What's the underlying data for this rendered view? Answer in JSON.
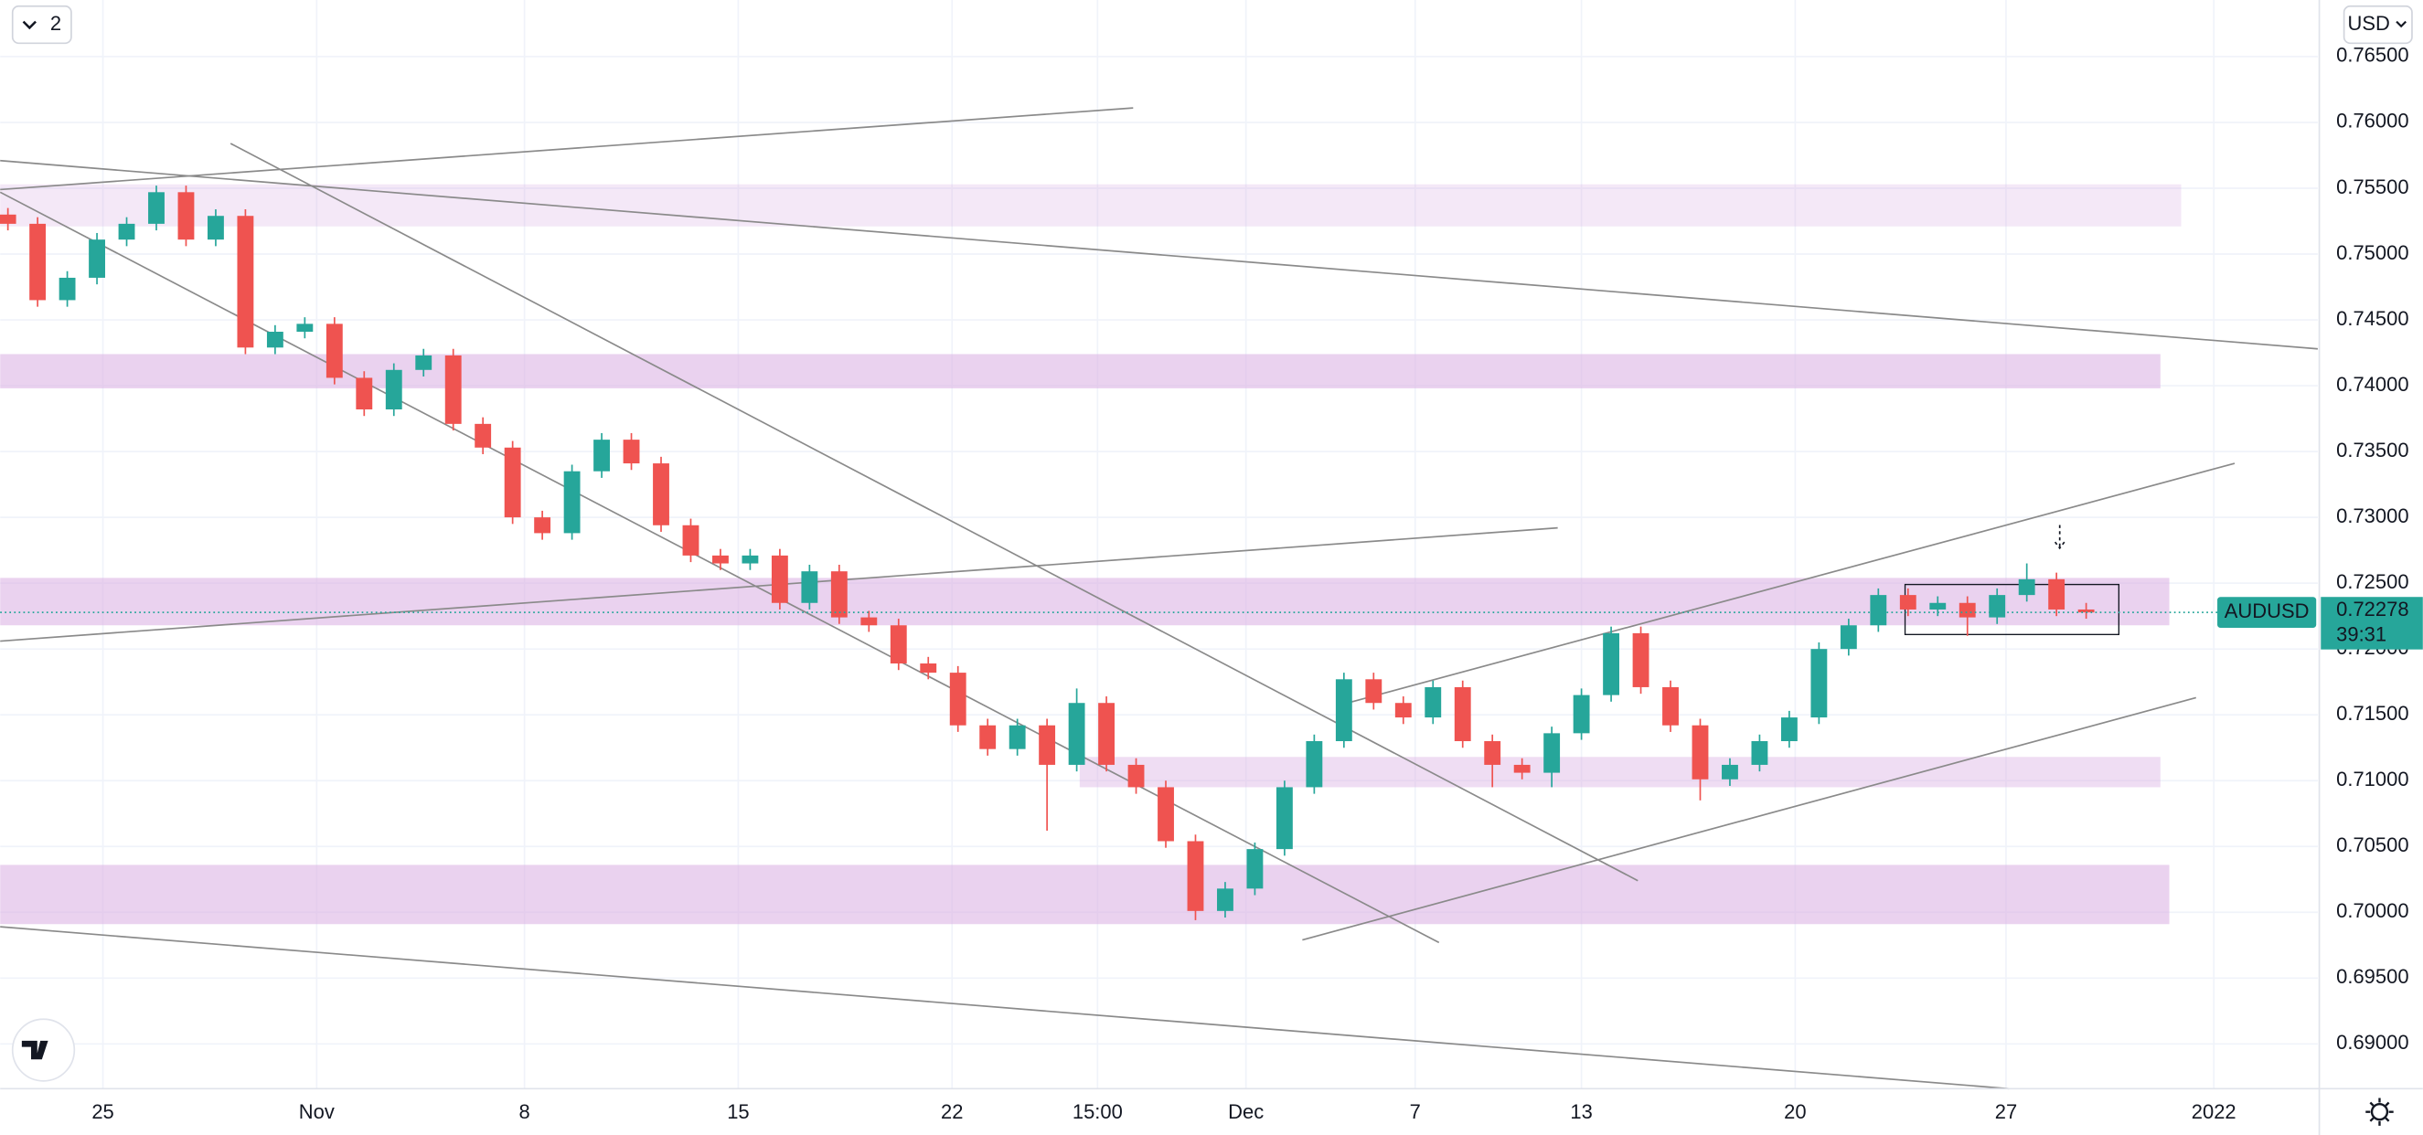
{
  "interval_button": "2",
  "currency": "USD",
  "chart_data": {
    "type": "candlestick",
    "symbol": "AUDUSD",
    "countdown": "39:31",
    "last_price": 0.72278,
    "colors": {
      "up": "#26a69a",
      "down": "#ef5350",
      "zone": "#dcb4e4",
      "line": "#8a8a8a"
    },
    "grid": true,
    "xlim": [
      -0.26,
      77.8
    ],
    "xticks": [
      {
        "value": 3.2,
        "label": "25"
      },
      {
        "value": 10.4,
        "label": "Nov"
      },
      {
        "value": 17.4,
        "label": "8"
      },
      {
        "value": 24.6,
        "label": "15"
      },
      {
        "value": 31.8,
        "label": "22"
      },
      {
        "value": 36.7,
        "label": "15:00"
      },
      {
        "value": 41.7,
        "label": "Dec"
      },
      {
        "value": 47.4,
        "label": "7"
      },
      {
        "value": 53.0,
        "label": "13"
      },
      {
        "value": 60.2,
        "label": "20"
      },
      {
        "value": 67.3,
        "label": "27"
      },
      {
        "value": 74.3,
        "label": "2022"
      }
    ],
    "ylim": [
      0.6866,
      0.7693
    ],
    "yticks": [
      {
        "value": 0.765,
        "label": "0.76500"
      },
      {
        "value": 0.76,
        "label": "0.76000"
      },
      {
        "value": 0.755,
        "label": "0.75500"
      },
      {
        "value": 0.75,
        "label": "0.75000"
      },
      {
        "value": 0.745,
        "label": "0.74500"
      },
      {
        "value": 0.74,
        "label": "0.74000"
      },
      {
        "value": 0.735,
        "label": "0.73500"
      },
      {
        "value": 0.73,
        "label": "0.73000"
      },
      {
        "value": 0.725,
        "label": "0.72500"
      },
      {
        "value": 0.72,
        "label": "0.72000"
      },
      {
        "value": 0.715,
        "label": "0.71500"
      },
      {
        "value": 0.71,
        "label": "0.71000"
      },
      {
        "value": 0.705,
        "label": "0.70500"
      },
      {
        "value": 0.7,
        "label": "0.70000"
      },
      {
        "value": 0.695,
        "label": "0.69500"
      },
      {
        "value": 0.69,
        "label": "0.69000"
      }
    ],
    "open": [
      0.753,
      0.7523,
      0.7465,
      0.7482,
      0.7511,
      0.7523,
      0.7547,
      0.7511,
      0.7529,
      0.7429,
      0.7441,
      0.7447,
      0.7406,
      0.7382,
      0.7412,
      0.7423,
      0.7371,
      0.7353,
      0.73,
      0.7288,
      0.7335,
      0.7359,
      0.7341,
      0.7294,
      0.7271,
      0.7265,
      0.7271,
      0.7235,
      0.7259,
      0.7224,
      0.7218,
      0.7189,
      0.7182,
      0.7142,
      0.7124,
      0.7142,
      0.7112,
      0.7159,
      0.7112,
      0.7095,
      0.7054,
      0.7001,
      0.7018,
      0.7048,
      0.7095,
      0.713,
      0.7177,
      0.7159,
      0.7148,
      0.7171,
      0.713,
      0.7112,
      0.7106,
      0.7136,
      0.7165,
      0.7212,
      0.7171,
      0.7142,
      0.7101,
      0.7112,
      0.713,
      0.7148,
      0.72,
      0.7218,
      0.7241,
      0.723,
      0.7235,
      0.7224,
      0.7241,
      0.7253,
      0.723
    ],
    "high": [
      0.7535,
      0.7528,
      0.7487,
      0.7516,
      0.7528,
      0.7552,
      0.7552,
      0.7534,
      0.7534,
      0.7446,
      0.7452,
      0.7452,
      0.7411,
      0.7417,
      0.7428,
      0.7428,
      0.7376,
      0.7358,
      0.7305,
      0.734,
      0.7364,
      0.7364,
      0.7346,
      0.7299,
      0.7276,
      0.7276,
      0.7276,
      0.7264,
      0.7264,
      0.7229,
      0.7223,
      0.7194,
      0.7187,
      0.7147,
      0.7147,
      0.7147,
      0.717,
      0.7164,
      0.7117,
      0.71,
      0.7059,
      0.7023,
      0.7053,
      0.71,
      0.7135,
      0.7182,
      0.7182,
      0.7164,
      0.7176,
      0.7176,
      0.7135,
      0.7117,
      0.7141,
      0.717,
      0.7217,
      0.7217,
      0.7176,
      0.7147,
      0.7117,
      0.7135,
      0.7153,
      0.7205,
      0.7223,
      0.7246,
      0.7246,
      0.724,
      0.724,
      0.7246,
      0.7265,
      0.7258,
      0.7235
    ],
    "low": [
      0.7518,
      0.746,
      0.746,
      0.7477,
      0.7506,
      0.7518,
      0.7506,
      0.7506,
      0.7424,
      0.7424,
      0.7436,
      0.7401,
      0.7377,
      0.7377,
      0.7407,
      0.7366,
      0.7348,
      0.7295,
      0.7283,
      0.7283,
      0.733,
      0.7336,
      0.7289,
      0.7266,
      0.726,
      0.726,
      0.723,
      0.723,
      0.7219,
      0.7213,
      0.7184,
      0.7177,
      0.7137,
      0.7119,
      0.7119,
      0.7062,
      0.7107,
      0.7107,
      0.709,
      0.7049,
      0.6994,
      0.6996,
      0.7013,
      0.7043,
      0.709,
      0.7125,
      0.7154,
      0.7143,
      0.7143,
      0.7125,
      0.7095,
      0.7101,
      0.7095,
      0.7131,
      0.716,
      0.7166,
      0.7137,
      0.7085,
      0.7096,
      0.7107,
      0.7125,
      0.7143,
      0.7195,
      0.7213,
      0.7225,
      0.7225,
      0.721,
      0.7219,
      0.7236,
      0.7225,
      0.7223
    ],
    "close": [
      0.7523,
      0.7465,
      0.7482,
      0.7511,
      0.7523,
      0.7547,
      0.7511,
      0.7529,
      0.7429,
      0.7441,
      0.7447,
      0.7406,
      0.7382,
      0.7412,
      0.7423,
      0.7371,
      0.7353,
      0.73,
      0.7288,
      0.7335,
      0.7359,
      0.7341,
      0.7294,
      0.7271,
      0.7265,
      0.7271,
      0.7235,
      0.7259,
      0.7224,
      0.7218,
      0.7189,
      0.7182,
      0.7142,
      0.7124,
      0.7142,
      0.7112,
      0.7159,
      0.7112,
      0.7095,
      0.7054,
      0.7001,
      0.7018,
      0.7048,
      0.7095,
      0.713,
      0.7177,
      0.7159,
      0.7148,
      0.7171,
      0.713,
      0.7112,
      0.7106,
      0.7136,
      0.7165,
      0.7212,
      0.7171,
      0.7142,
      0.7101,
      0.7112,
      0.713,
      0.7148,
      0.72,
      0.7218,
      0.7241,
      0.723,
      0.7235,
      0.7224,
      0.7241,
      0.7253,
      0.723,
      0.72278
    ],
    "zones": [
      {
        "start": -0.26,
        "end": 73.2,
        "top": 0.7553,
        "bottom": 0.7521,
        "opacity": 0.3
      },
      {
        "start": -0.26,
        "end": 72.5,
        "top": 0.7424,
        "bottom": 0.7398,
        "opacity": 0.6
      },
      {
        "start": -0.26,
        "end": 72.8,
        "top": 0.7254,
        "bottom": 0.7218,
        "opacity": 0.6
      },
      {
        "start": 36.1,
        "end": 72.5,
        "top": 0.7118,
        "bottom": 0.7095,
        "opacity": 0.45
      },
      {
        "start": -0.26,
        "end": 72.8,
        "top": 0.7036,
        "bottom": 0.6991,
        "opacity": 0.6
      }
    ],
    "trend_lines": [
      {
        "x": [
          -0.26,
          37.9
        ],
        "y": [
          0.7549,
          0.7611
        ]
      },
      {
        "x": [
          -0.26,
          77.8
        ],
        "y": [
          0.7571,
          0.7428
        ]
      },
      {
        "x": [
          7.5,
          54.9
        ],
        "y": [
          0.7584,
          0.7024
        ]
      },
      {
        "x": [
          -0.26,
          48.2
        ],
        "y": [
          0.7547,
          0.6977
        ]
      },
      {
        "x": [
          -0.26,
          52.2
        ],
        "y": [
          0.7206,
          0.7292
        ]
      },
      {
        "x": [
          44.8,
          75.0
        ],
        "y": [
          0.7157,
          0.7341
        ]
      },
      {
        "x": [
          43.6,
          73.7
        ],
        "y": [
          0.6979,
          0.7163
        ]
      },
      {
        "x": [
          -0.26,
          67.4
        ],
        "y": [
          0.6989,
          0.6866
        ]
      }
    ],
    "range_box": {
      "start": 63.9,
      "end": 71.1,
      "top": 0.7249,
      "bottom": 0.7211
    }
  }
}
